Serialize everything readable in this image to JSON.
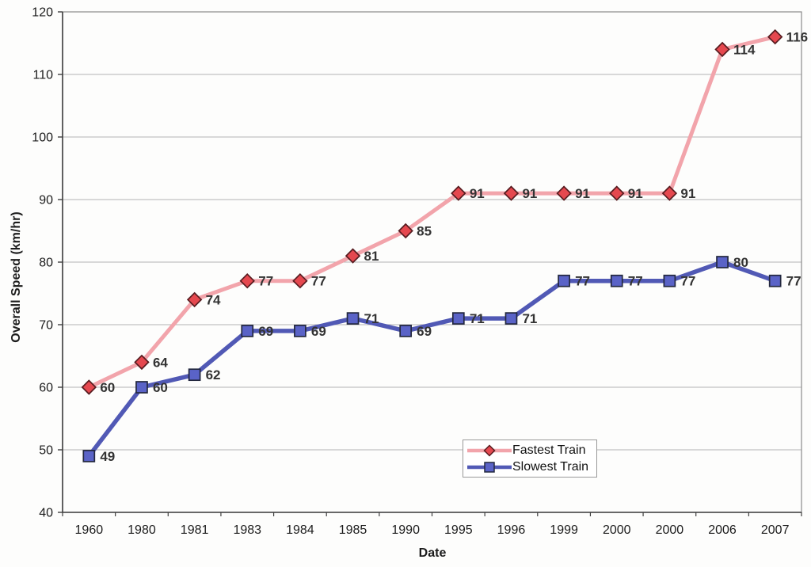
{
  "chart_data": {
    "type": "line",
    "title": "",
    "xlabel": "Date",
    "ylabel": "Overall Speed (km/hr)",
    "categories": [
      "1960",
      "1980",
      "1981",
      "1983",
      "1984",
      "1985",
      "1990",
      "1995",
      "1996",
      "1999",
      "2000",
      "2000",
      "2006",
      "2007"
    ],
    "series": [
      {
        "name": "Fastest Train",
        "values": [
          60,
          64,
          74,
          77,
          77,
          81,
          85,
          91,
          91,
          91,
          91,
          91,
          114,
          116
        ],
        "marker": "diamond",
        "line_color": "#f2a4ab",
        "marker_fill": "#e5484f",
        "marker_stroke": "#571c20"
      },
      {
        "name": "Slowest Train",
        "values": [
          49,
          60,
          62,
          69,
          69,
          71,
          69,
          71,
          71,
          77,
          77,
          77,
          80,
          77
        ],
        "marker": "square",
        "line_color": "#5159b5",
        "marker_fill": "#5a63c7",
        "marker_stroke": "#23283f"
      }
    ],
    "ylim": [
      40,
      120
    ],
    "yticks": [
      40,
      50,
      60,
      70,
      80,
      90,
      100,
      110,
      120
    ],
    "grid": "horizontal",
    "legend_position": "inside-bottom-center",
    "data_labels": true
  },
  "colors": {
    "grid": "#b3b3b3",
    "plot_border": "#8a8a8a",
    "axis": "#3f3f3f",
    "tick_text": "#1c1c1c",
    "data_label_text": "#333333",
    "background": "#fdfdfc",
    "legend_border": "#999999"
  }
}
